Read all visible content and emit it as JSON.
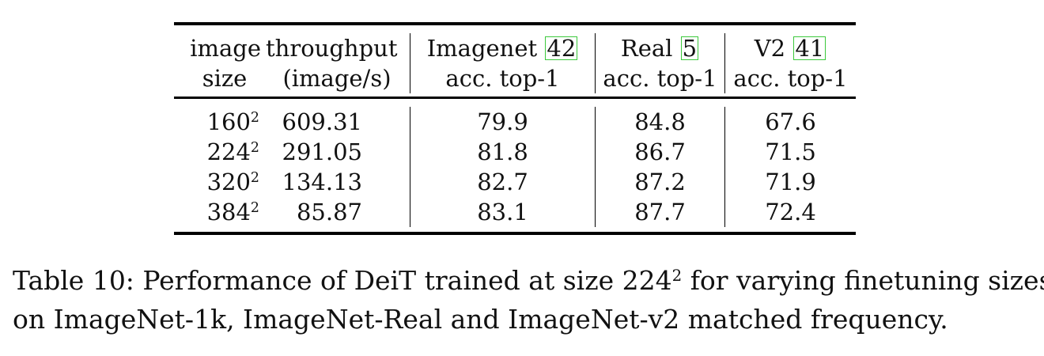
{
  "table": {
    "header_top": {
      "size": "image",
      "throughput": "throughput",
      "imagenet": "Imagenet",
      "imagenet_cite": "42",
      "real": "Real",
      "real_cite": "5",
      "v2": "V2",
      "v2_cite": "41"
    },
    "header_bottom": {
      "size": "size",
      "throughput": "(image/s)",
      "imagenet": "acc. top-1",
      "real": "acc. top-1",
      "v2": "acc. top-1"
    },
    "rows": [
      {
        "size_base": "160",
        "size_exp": "2",
        "throughput": "609.31",
        "imagenet": "79.9",
        "real": "84.8",
        "v2": "67.6"
      },
      {
        "size_base": "224",
        "size_exp": "2",
        "throughput": "291.05",
        "imagenet": "81.8",
        "real": "86.7",
        "v2": "71.5"
      },
      {
        "size_base": "320",
        "size_exp": "2",
        "throughput": "134.13",
        "imagenet": "82.7",
        "real": "87.2",
        "v2": "71.9"
      },
      {
        "size_base": "384",
        "size_exp": "2",
        "throughput": "85.87",
        "imagenet": "83.1",
        "real": "87.7",
        "v2": "72.4"
      }
    ]
  },
  "caption": {
    "line1_pre": "Table 10: Performance of DeiT trained at size 224",
    "line1_exp": "2",
    "line1_post": " for varying finetuning sizes",
    "line2": "on ImageNet-1k, ImageNet-Real and ImageNet-v2 matched frequency."
  }
}
